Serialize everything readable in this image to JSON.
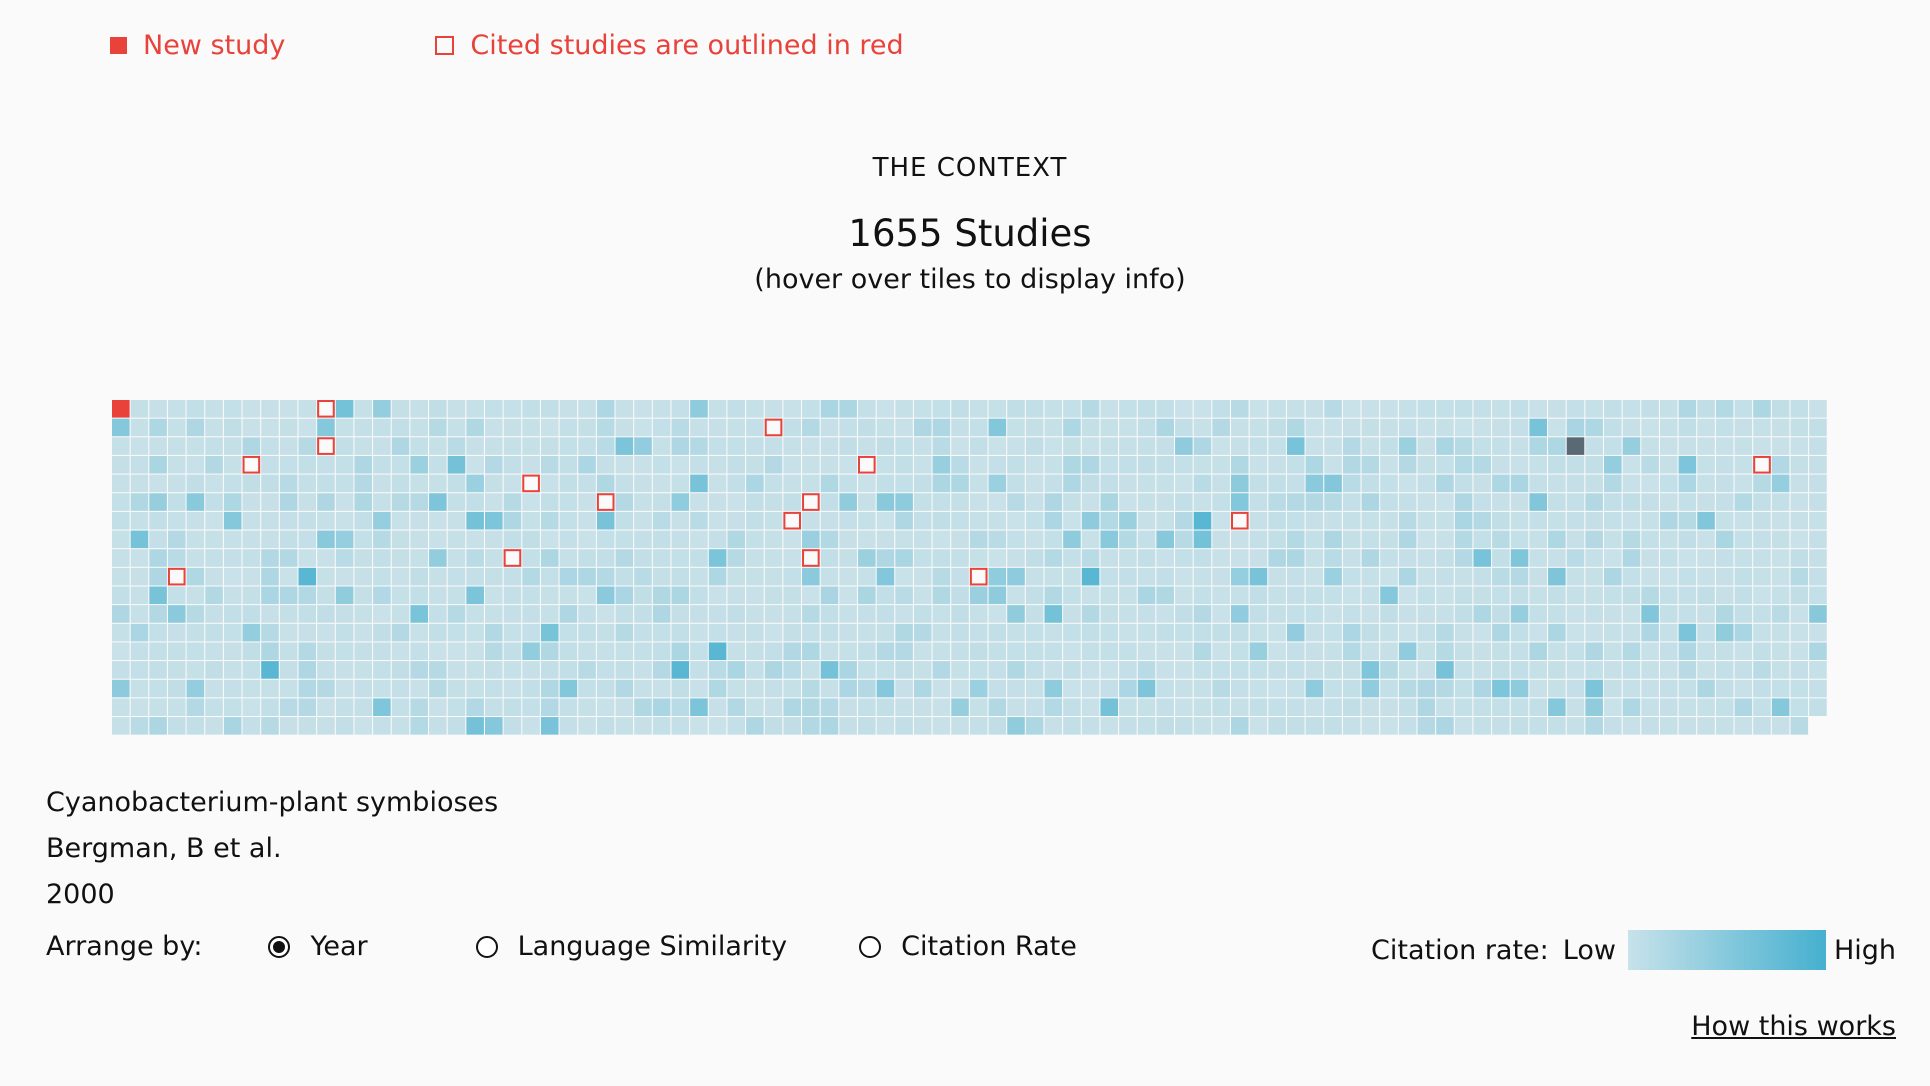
{
  "legend": {
    "new_study": "New study",
    "cited_studies": "Cited studies are outlined in red"
  },
  "header": {
    "context_label": "THE CONTEXT",
    "count_label": "1655 Studies",
    "hint_label": "(hover over tiles to display info)"
  },
  "selected_study": {
    "title": "Cyanobacterium-plant symbioses",
    "authors": "Bergman, B et al.",
    "year": "2000"
  },
  "arrange": {
    "label": "Arrange by:",
    "options": [
      {
        "label": "Year",
        "checked": true
      },
      {
        "label": "Language Similarity",
        "checked": false
      },
      {
        "label": "Citation Rate",
        "checked": false
      }
    ]
  },
  "citation_legend": {
    "label": "Citation rate:",
    "low": "Low",
    "high": "High",
    "color_low": "#c7e2ea",
    "color_high": "#45b0cf"
  },
  "how_link": "How this works",
  "colors": {
    "new_study": "#e8423b",
    "cited_outline": "#e8423b",
    "hovered_tile": "#5a6a75",
    "tile_base": "#c9e1e8",
    "gridline": "#ffffff"
  },
  "tiles": {
    "total_studies": 1655,
    "columns": 92,
    "rows": 18,
    "new_study_index": 0,
    "hovered_index": 1
  }
}
